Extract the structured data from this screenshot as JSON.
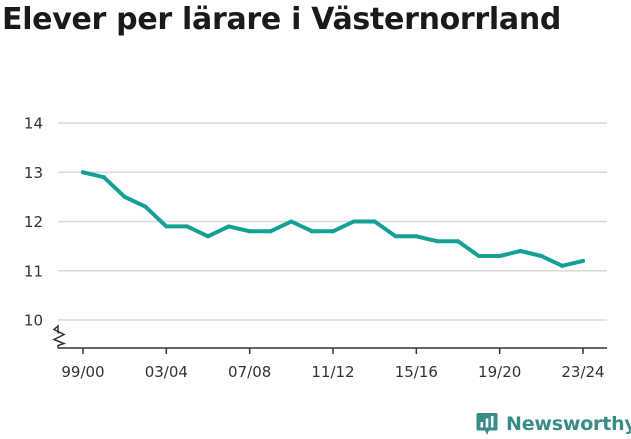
{
  "title": "Elever per lärare i Västernorrland",
  "brand": "Newsworthy",
  "colors": {
    "line": "#14a096",
    "grid": "#d9d9d9",
    "brand": "#3a8c88"
  },
  "chart_data": {
    "type": "line",
    "title": "Elever per lärare i Västernorrland",
    "xlabel": "",
    "ylabel": "",
    "ylim": [
      10,
      14
    ],
    "y_axis_break": true,
    "grid": true,
    "yticks": [
      10,
      11,
      12,
      13,
      14
    ],
    "xticks": [
      "99/00",
      "03/04",
      "07/08",
      "11/12",
      "15/16",
      "19/20",
      "23/24"
    ],
    "x": [
      "99/00",
      "00/01",
      "01/02",
      "02/03",
      "03/04",
      "04/05",
      "05/06",
      "06/07",
      "07/08",
      "08/09",
      "09/10",
      "10/11",
      "11/12",
      "12/13",
      "13/14",
      "14/15",
      "15/16",
      "16/17",
      "17/18",
      "18/19",
      "19/20",
      "20/21",
      "21/22",
      "22/23",
      "23/24"
    ],
    "series": [
      {
        "values": [
          13.0,
          12.9,
          12.5,
          12.3,
          11.9,
          11.9,
          11.7,
          11.9,
          11.8,
          11.8,
          12.0,
          11.8,
          11.8,
          12.0,
          12.0,
          11.7,
          11.7,
          11.6,
          11.6,
          11.3,
          11.3,
          11.4,
          11.3,
          11.1,
          11.2
        ]
      }
    ]
  }
}
